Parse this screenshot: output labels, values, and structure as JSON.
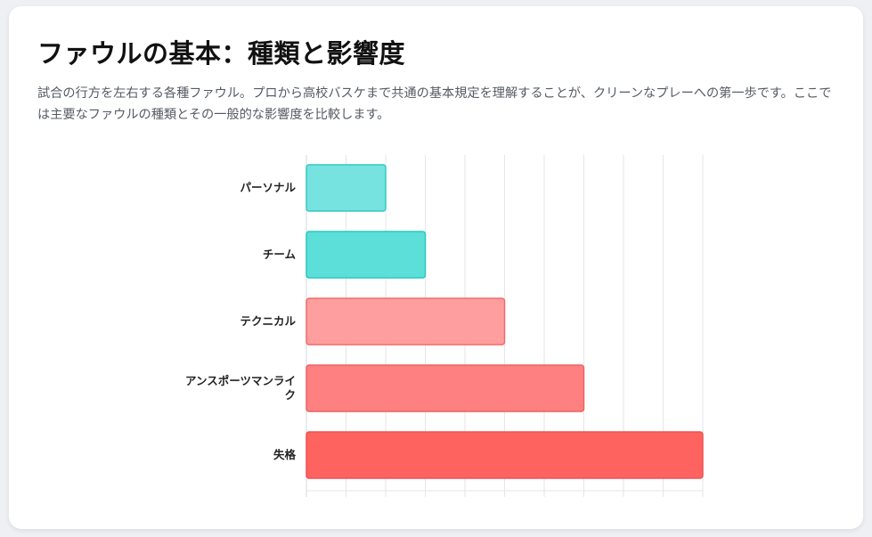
{
  "header": {
    "title": "ファウルの基本：種類と影響度",
    "description": "試合の行方を左右する各種ファウル。プロから高校バスケまで共通の基本規定を理解することが、クリーンなプレーへの第一歩です。ここでは主要なファウルの種類とその一般的な影響度を比較します。"
  },
  "chart_data": {
    "type": "bar",
    "orientation": "horizontal",
    "categories": [
      "パーソナル",
      "チーム",
      "テクニカル",
      "アンスポーツマンライク",
      "失格"
    ],
    "category_lines": [
      [
        "パーソナル"
      ],
      [
        "チーム"
      ],
      [
        "テクニカル"
      ],
      [
        "アンスポーツマンライ",
        "ク"
      ],
      [
        "失格"
      ]
    ],
    "values": [
      2,
      3,
      5,
      7,
      10
    ],
    "xlim": [
      0,
      10
    ],
    "grid": true,
    "legend": "none",
    "colors": {
      "fills": [
        "#76e3e1",
        "#5cdfd9",
        "#ff9e9e",
        "#ff8080",
        "#ff6360"
      ],
      "strokes": [
        "#35c8c2",
        "#2cc7c0",
        "#f06a6a",
        "#ec6262",
        "#ef5150"
      ]
    }
  }
}
